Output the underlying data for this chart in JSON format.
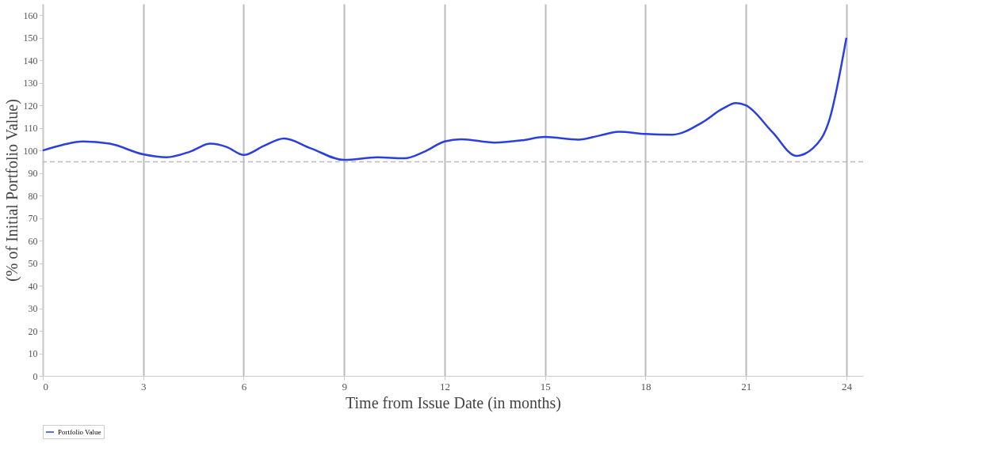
{
  "chart_data": {
    "type": "line",
    "xlabel": "Time from Issue Date (in months)",
    "ylabel": "(% of Initial Portfolio Value)",
    "series": [
      {
        "name": "Portfolio Value",
        "color": "#2b3fe0",
        "x": [
          0,
          0.6,
          1.2,
          2,
          3,
          3.7,
          4.4,
          5,
          5.5,
          6,
          6.6,
          7.2,
          8,
          9,
          10,
          10.8,
          11.4,
          12,
          12.5,
          13.5,
          14.3,
          15,
          16,
          16.6,
          17.2,
          18,
          18.8,
          19.7,
          20.3,
          20.7,
          21,
          21.8,
          22.5,
          23,
          23.5,
          24
        ],
        "values": [
          100,
          102.5,
          104,
          103,
          98.3,
          97,
          99.5,
          103,
          101.5,
          98,
          102,
          105.3,
          101,
          95.8,
          97,
          96.5,
          99.5,
          104,
          105,
          103.5,
          104.5,
          106,
          104.8,
          106.5,
          108.3,
          107.3,
          107,
          112.5,
          118.5,
          121,
          120,
          108,
          97.6,
          101,
          114,
          150
        ]
      }
    ],
    "xlim": [
      0,
      24.5
    ],
    "xticks": [
      0,
      3,
      6,
      9,
      12,
      15,
      18,
      21,
      24
    ],
    "ylim": [
      0,
      165
    ],
    "yticks": [
      0,
      10,
      20,
      30,
      40,
      50,
      60,
      70,
      80,
      90,
      100,
      110,
      120,
      130,
      140,
      150,
      160
    ],
    "ref_lines": [
      {
        "axis": "y",
        "value": 95,
        "color": "#bbbbbb",
        "line_style": "dashed"
      }
    ],
    "grid": "x",
    "legend": "bottom",
    "marker": "none",
    "line_style": "solid"
  }
}
